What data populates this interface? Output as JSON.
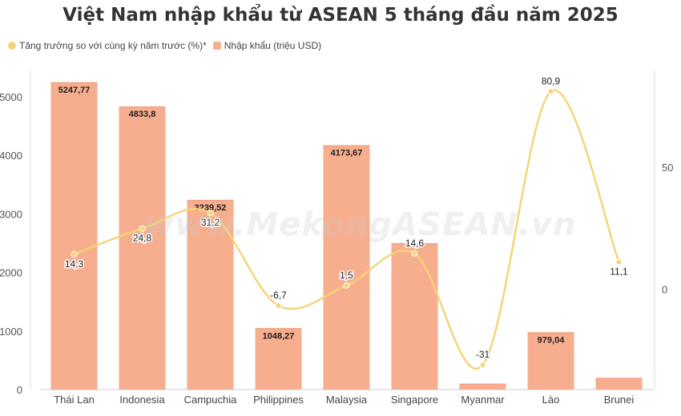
{
  "chart_data": {
    "type": "bar",
    "title": "Việt Nam nhập khẩu từ ASEAN 5 tháng đầu năm 2025",
    "categories": [
      "Thái Lan",
      "Indonesia",
      "Campuchia",
      "Philippines",
      "Malaysia",
      "Singapore",
      "Myanmar",
      "Lào",
      "Brunei"
    ],
    "series": [
      {
        "name": "Nhập khẩu (triệu USD)",
        "axis": "left",
        "kind": "bar",
        "color": "#f7ae8f",
        "values": [
          5247.77,
          4833.8,
          3239.52,
          1048.27,
          4173.67,
          2500,
          100,
          979.04,
          200
        ],
        "labels": [
          "5247,77",
          "4833,8",
          "3239,52",
          "1048,27",
          "4173,67",
          "",
          "",
          "979,04",
          ""
        ]
      },
      {
        "name": "Tăng trưởng so với cùng kỳ năm trước (%)*",
        "axis": "right",
        "kind": "line",
        "color": "#f5d479",
        "values": [
          14.3,
          24.8,
          31.2,
          -6.7,
          1.5,
          14.6,
          -31,
          80.9,
          11.1
        ],
        "labels": [
          "14,3",
          "24,8",
          "31,2",
          "-6,7",
          "1,5",
          "14,6",
          "-31",
          "80,9",
          "11,1"
        ]
      }
    ],
    "y_left": {
      "ticks": [
        "0",
        "1000",
        "2000",
        "3000",
        "4000",
        "5000"
      ],
      "ylim": [
        0,
        5400
      ]
    },
    "y_right": {
      "ticks": [
        "0",
        "50"
      ],
      "ylim": [
        -40,
        86
      ]
    },
    "grid": false,
    "legend": "top-left"
  },
  "watermark": "www.MekongASEAN.vn"
}
